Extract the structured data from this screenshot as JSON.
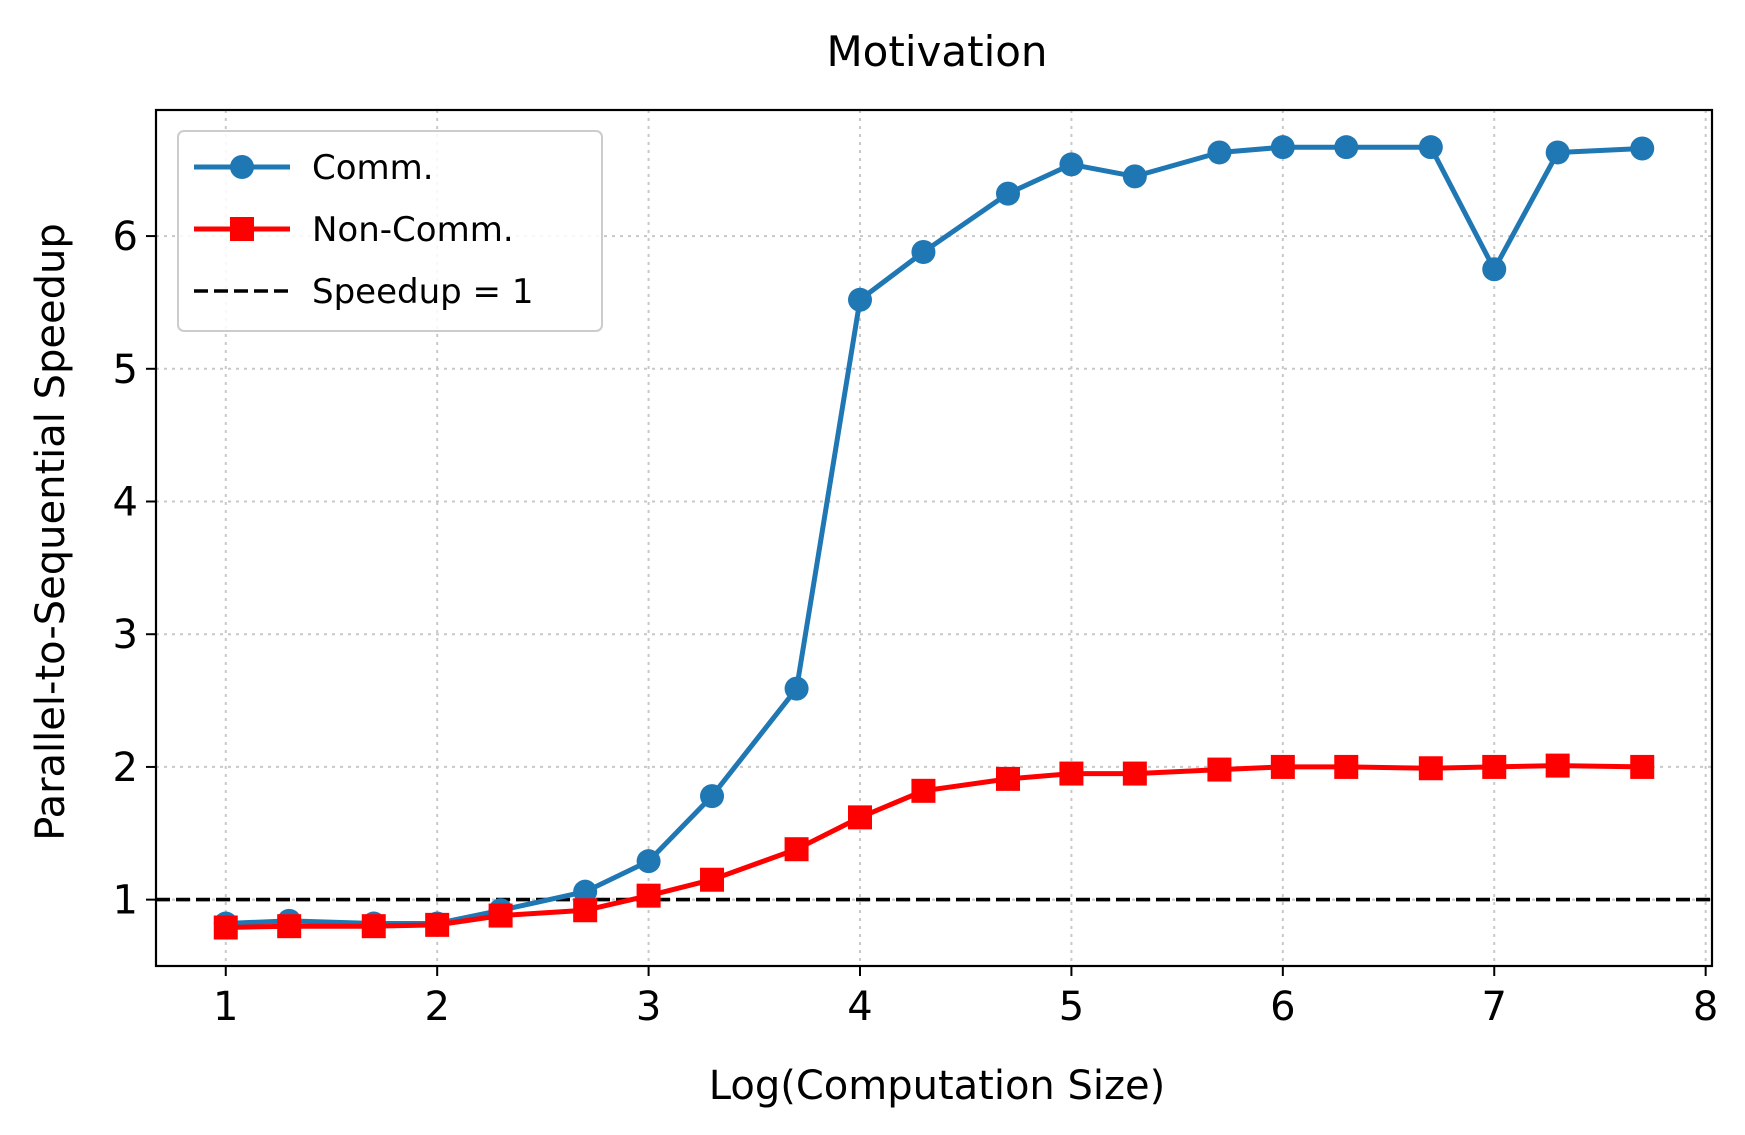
{
  "chart_data": {
    "type": "line",
    "title": "Motivation",
    "xlabel": "Log(Computation Size)",
    "ylabel": "Parallel-to-Sequential Speedup",
    "xlim": [
      0.67,
      8.03
    ],
    "ylim": [
      0.5,
      6.95
    ],
    "xticks": [
      1,
      2,
      3,
      4,
      5,
      6,
      7,
      8
    ],
    "yticks": [
      1,
      2,
      3,
      4,
      5,
      6
    ],
    "grid": true,
    "legend_position": "top-left",
    "series": [
      {
        "name": "Comm.",
        "color": "#1f77b4",
        "marker": "circle",
        "linestyle": "solid",
        "x": [
          1.0,
          1.3,
          1.7,
          2.0,
          2.3,
          2.7,
          3.0,
          3.3,
          3.7,
          4.0,
          4.3,
          4.7,
          5.0,
          5.3,
          5.7,
          6.0,
          6.3,
          6.7,
          7.0,
          7.3,
          7.7
        ],
        "y": [
          0.82,
          0.84,
          0.82,
          0.82,
          0.92,
          1.06,
          1.29,
          1.78,
          2.59,
          5.52,
          5.88,
          6.32,
          6.54,
          6.45,
          6.63,
          6.67,
          6.67,
          6.67,
          5.75,
          6.63,
          6.66
        ]
      },
      {
        "name": "Non-Comm.",
        "color": "#ff0000",
        "marker": "square",
        "linestyle": "solid",
        "x": [
          1.0,
          1.3,
          1.7,
          2.0,
          2.3,
          2.7,
          3.0,
          3.3,
          3.7,
          4.0,
          4.3,
          4.7,
          5.0,
          5.3,
          5.7,
          6.0,
          6.3,
          6.7,
          7.0,
          7.3,
          7.7
        ],
        "y": [
          0.79,
          0.8,
          0.8,
          0.81,
          0.88,
          0.92,
          1.03,
          1.15,
          1.38,
          1.62,
          1.82,
          1.91,
          1.95,
          1.95,
          1.98,
          2.0,
          2.0,
          1.99,
          2.0,
          2.01,
          2.0
        ]
      },
      {
        "name": "Speedup = 1",
        "color": "#000000",
        "marker": "none",
        "linestyle": "dashed",
        "x": [
          0.67,
          8.03
        ],
        "y": [
          1.0,
          1.0
        ]
      }
    ]
  }
}
